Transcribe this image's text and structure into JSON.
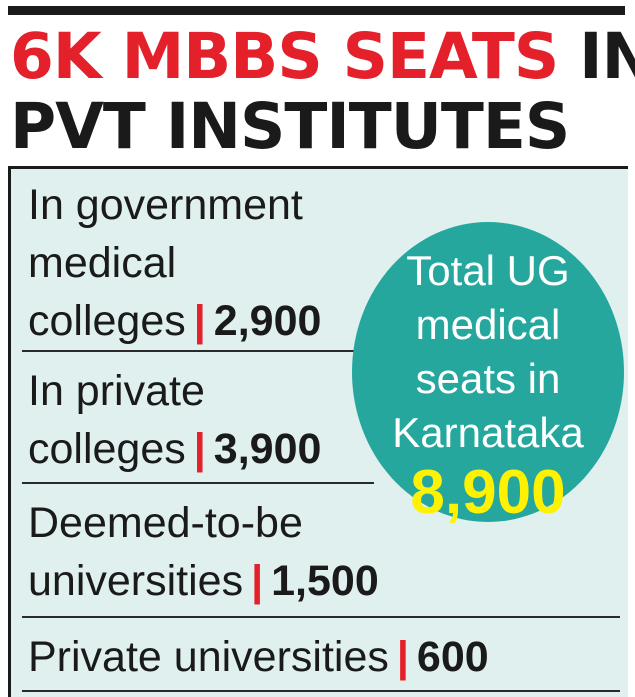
{
  "headline": {
    "highlight": "6K MBBS SEATS",
    "rest_line1": " IN",
    "line2": "PVT INSTITUTES"
  },
  "entries": [
    {
      "label_lines": [
        "In government",
        "medical",
        "colleges"
      ],
      "value": "2,900"
    },
    {
      "label_lines": [
        "In private",
        "colleges"
      ],
      "value": "3,900"
    },
    {
      "label_lines": [
        "Deemed-to-be",
        "universities"
      ],
      "value": "1,500"
    },
    {
      "label_lines": [
        "Private universities"
      ],
      "value": "600"
    }
  ],
  "separator": "|",
  "total": {
    "label_lines": [
      "Total UG",
      "medical",
      "seats in",
      "Karnataka"
    ],
    "value": "8,900"
  },
  "colors": {
    "headline_red": "#e4202b",
    "panel_bg": "#dff0ee",
    "circle": "#26a79e",
    "total_value": "#fff200",
    "separator": "#e4202b"
  }
}
